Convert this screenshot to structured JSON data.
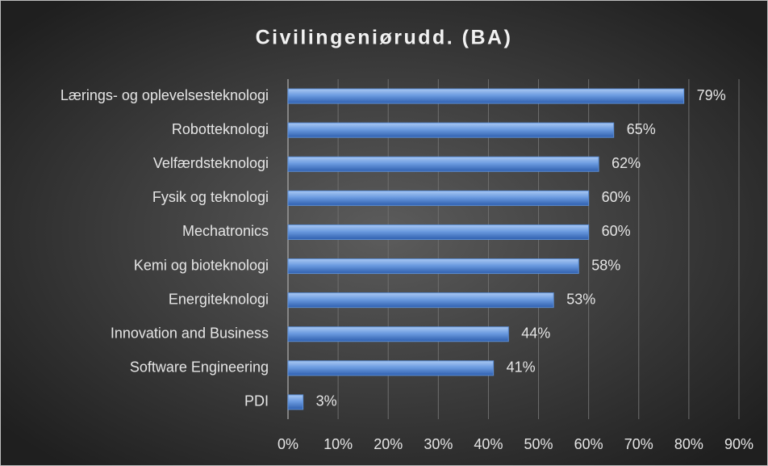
{
  "chart_data": {
    "type": "bar",
    "orientation": "horizontal",
    "title": "Civilingeniørudd. (BA)",
    "categories": [
      "Lærings- og oplevelsesteknologi",
      "Robotteknologi",
      "Velfærdsteknologi",
      "Fysik og teknologi",
      "Mechatronics",
      "Kemi og bioteknologi",
      "Energiteknologi",
      "Innovation and Business",
      "Software Engineering",
      "PDI"
    ],
    "values": [
      79,
      65,
      62,
      60,
      60,
      58,
      53,
      44,
      41,
      3
    ],
    "value_labels": [
      "79%",
      "65%",
      "62%",
      "60%",
      "60%",
      "58%",
      "53%",
      "44%",
      "41%",
      "3%"
    ],
    "color": "#5b8fd9",
    "xlim": [
      0,
      90
    ],
    "xticks": [
      {
        "value": 0,
        "label": "0%"
      },
      {
        "value": 10,
        "label": "10%"
      },
      {
        "value": 20,
        "label": "20%"
      },
      {
        "value": 30,
        "label": "30%"
      },
      {
        "value": 40,
        "label": "40%"
      },
      {
        "value": 50,
        "label": "50%"
      },
      {
        "value": 60,
        "label": "60%"
      },
      {
        "value": 70,
        "label": "70%"
      },
      {
        "value": 80,
        "label": "80%"
      },
      {
        "value": 90,
        "label": "90%"
      }
    ],
    "grid": true
  }
}
